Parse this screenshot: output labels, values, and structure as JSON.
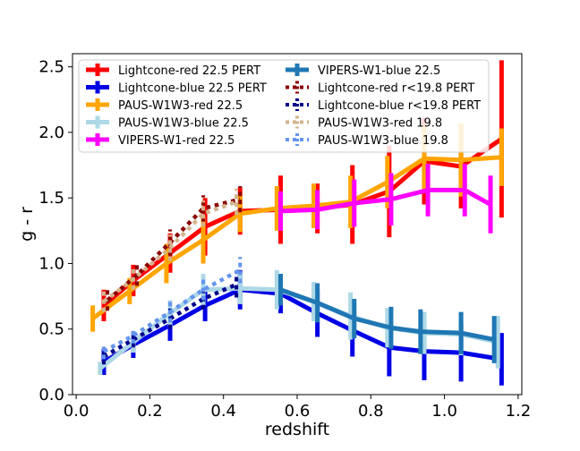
{
  "chart_data": {
    "type": "line",
    "xlabel": "redshift",
    "ylabel": "g - r",
    "xlim": [
      -0.01,
      1.21
    ],
    "ylim": [
      0.0,
      2.6
    ],
    "xticks": [
      0.0,
      0.2,
      0.4,
      0.6,
      0.8,
      1.0,
      1.2
    ],
    "xtick_labels": [
      "0.0",
      "0.2",
      "0.4",
      "0.6",
      "0.8",
      "1.0",
      "1.2"
    ],
    "yticks": [
      0.0,
      0.5,
      1.0,
      1.5,
      2.0,
      2.5
    ],
    "ytick_labels": [
      "0.0",
      "0.5",
      "1.0",
      "1.5",
      "2.0",
      "2.5"
    ],
    "grid": false,
    "legend_position": "top",
    "series": [
      {
        "name": "Lightcone-red 22.5 PERT",
        "color": "#ff0000",
        "style": "solid",
        "x": [
          0.075,
          0.155,
          0.255,
          0.35,
          0.445,
          0.555,
          0.655,
          0.75,
          0.85,
          0.945,
          1.045,
          1.155
        ],
        "y": [
          0.68,
          0.87,
          1.08,
          1.28,
          1.4,
          1.41,
          1.42,
          1.45,
          1.55,
          1.78,
          1.74,
          1.95
        ],
        "yerr": [
          0.12,
          0.12,
          0.15,
          0.22,
          0.18,
          0.26,
          0.19,
          0.3,
          0.35,
          0.33,
          0.32,
          0.6
        ]
      },
      {
        "name": "Lightcone-blue 22.5 PERT",
        "color": "#0000e6",
        "style": "solid",
        "x": [
          0.075,
          0.155,
          0.255,
          0.35,
          0.445,
          0.555,
          0.655,
          0.75,
          0.85,
          0.945,
          1.045,
          1.155
        ],
        "y": [
          0.25,
          0.38,
          0.53,
          0.68,
          0.8,
          0.77,
          0.62,
          0.49,
          0.36,
          0.33,
          0.32,
          0.27
        ],
        "yerr": [
          0.1,
          0.1,
          0.12,
          0.12,
          0.15,
          0.15,
          0.18,
          0.2,
          0.22,
          0.22,
          0.22,
          0.2
        ]
      },
      {
        "name": "PAUS-W1W3-red 22.5",
        "color": "#ffa500",
        "style": "solid",
        "x": [
          0.045,
          0.145,
          0.245,
          0.345,
          0.445,
          0.545,
          0.645,
          0.745,
          0.845,
          0.945,
          1.045,
          1.155
        ],
        "y": [
          0.58,
          0.79,
          1.0,
          1.18,
          1.38,
          1.42,
          1.44,
          1.47,
          1.62,
          1.8,
          1.79,
          1.81
        ],
        "yerr": [
          0.1,
          0.1,
          0.15,
          0.18,
          0.14,
          0.17,
          0.17,
          0.2,
          0.2,
          0.25,
          0.28,
          0.22
        ]
      },
      {
        "name": "PAUS-W1W3-blue 22.5",
        "color": "#add8e6",
        "style": "solid",
        "x": [
          0.065,
          0.155,
          0.255,
          0.345,
          0.445,
          0.545,
          0.645,
          0.745,
          0.845,
          0.945,
          1.045,
          1.145
        ],
        "y": [
          0.2,
          0.4,
          0.62,
          0.8,
          0.81,
          0.8,
          0.71,
          0.6,
          0.51,
          0.47,
          0.46,
          0.4
        ],
        "yerr": [
          0.05,
          0.08,
          0.1,
          0.12,
          0.12,
          0.15,
          0.15,
          0.18,
          0.15,
          0.16,
          0.16,
          0.2
        ]
      },
      {
        "name": "VIPERS-W1-red 22.5",
        "color": "#ff00ff",
        "style": "solid",
        "x": [
          0.555,
          0.655,
          0.755,
          0.855,
          0.955,
          1.055,
          1.125
        ],
        "y": [
          1.4,
          1.41,
          1.46,
          1.49,
          1.56,
          1.56,
          1.45
        ],
        "yerr": [
          0.15,
          0.15,
          0.18,
          0.2,
          0.2,
          0.2,
          0.22
        ]
      },
      {
        "name": "VIPERS-W1-blue 22.5",
        "color": "#1f77b4",
        "style": "solid",
        "x": [
          0.555,
          0.655,
          0.755,
          0.855,
          0.935,
          1.045,
          1.135
        ],
        "y": [
          0.8,
          0.7,
          0.58,
          0.51,
          0.48,
          0.47,
          0.42
        ],
        "yerr": [
          0.12,
          0.15,
          0.15,
          0.16,
          0.17,
          0.16,
          0.18
        ]
      },
      {
        "name": "Lightcone-red r<19.8 PERT",
        "color": "#8b0000",
        "style": "dotted",
        "x": [
          0.085,
          0.165,
          0.255,
          0.345,
          0.445
        ],
        "y": [
          0.72,
          0.91,
          1.16,
          1.42,
          1.49
        ],
        "yerr": [
          0.08,
          0.08,
          0.1,
          0.1,
          0.1
        ]
      },
      {
        "name": "Lightcone-blue r<19.8 PERT",
        "color": "#00008b",
        "style": "dotted",
        "x": [
          0.075,
          0.155,
          0.255,
          0.345,
          0.435
        ],
        "y": [
          0.29,
          0.42,
          0.58,
          0.73,
          0.84
        ],
        "yerr": [
          0.06,
          0.06,
          0.08,
          0.08,
          0.1
        ]
      },
      {
        "name": "PAUS-W1W3-red 19.8",
        "color": "#d2b48c",
        "style": "dotted",
        "x": [
          0.075,
          0.155,
          0.255,
          0.345,
          0.435
        ],
        "y": [
          0.71,
          0.88,
          1.12,
          1.38,
          1.47
        ],
        "yerr": [
          0.08,
          0.08,
          0.1,
          0.1,
          0.1
        ]
      },
      {
        "name": "PAUS-W1W3-blue 19.8",
        "color": "#6495ed",
        "style": "dotted",
        "x": [
          0.075,
          0.155,
          0.255,
          0.345,
          0.445
        ],
        "y": [
          0.33,
          0.45,
          0.63,
          0.8,
          0.95
        ],
        "yerr": [
          0.06,
          0.06,
          0.08,
          0.08,
          0.1
        ]
      }
    ]
  }
}
